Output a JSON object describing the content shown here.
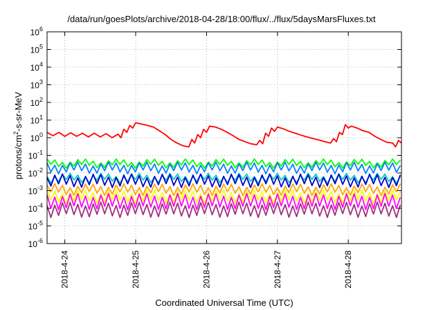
{
  "chart_data": {
    "type": "line",
    "title": "/data/run/goesPlots/archive/2018-04-28/18:00/flux/../flux/5daysMarsFluxes.txt",
    "xlabel": "Coordinated Universal Time (UTC)",
    "ylabel_prefix": "protons/cm",
    "ylabel_sup": "2",
    "ylabel_suffix": "-s-sr-MeV",
    "y_scale": "log",
    "ylim": [
      1e-06,
      1000000.0
    ],
    "y_ticks": [
      {
        "exp": -6,
        "label": "10",
        "sup": "-6"
      },
      {
        "exp": -5,
        "label": "10",
        "sup": "-5"
      },
      {
        "exp": -4,
        "label": "10",
        "sup": "-4"
      },
      {
        "exp": -3,
        "label": "10",
        "sup": "-3"
      },
      {
        "exp": -2,
        "label": "10",
        "sup": "-2"
      },
      {
        "exp": -1,
        "label": "10",
        "sup": "-1"
      },
      {
        "exp": 0,
        "label": "10",
        "sup": "0"
      },
      {
        "exp": 1,
        "label": "10",
        "sup": "1"
      },
      {
        "exp": 2,
        "label": "10",
        "sup": "2"
      },
      {
        "exp": 3,
        "label": "10",
        "sup": "3"
      },
      {
        "exp": 4,
        "label": "10",
        "sup": "4"
      },
      {
        "exp": 5,
        "label": "10",
        "sup": "5"
      },
      {
        "exp": 6,
        "label": "10",
        "sup": "6"
      }
    ],
    "x_unit": "days",
    "xlim": [
      "2018-04-23T18:00",
      "2018-04-28T18:00"
    ],
    "x_ticks": [
      {
        "t": "2018-04-24T00:00",
        "label": "2018-4-24"
      },
      {
        "t": "2018-04-25T00:00",
        "label": "2018-4-25"
      },
      {
        "t": "2018-04-26T00:00",
        "label": "2018-4-26"
      },
      {
        "t": "2018-04-27T00:00",
        "label": "2018-4-27"
      },
      {
        "t": "2018-04-28T00:00",
        "label": "2018-4-28"
      }
    ],
    "grid": true,
    "legend": "none",
    "series": [
      {
        "color": "#ff0000",
        "pattern": "sparse",
        "points": [
          [
            "2018-04-23T18:00",
            2.0
          ],
          [
            "2018-04-23T20:00",
            1.3
          ],
          [
            "2018-04-23T22:00",
            2.0
          ],
          [
            "2018-04-24T00:00",
            1.2
          ],
          [
            "2018-04-24T02:00",
            1.9
          ],
          [
            "2018-04-24T04:00",
            1.2
          ],
          [
            "2018-04-24T06:00",
            1.8
          ],
          [
            "2018-04-24T08:00",
            1.1
          ],
          [
            "2018-04-24T10:00",
            1.8
          ],
          [
            "2018-04-24T12:00",
            1.1
          ],
          [
            "2018-04-24T14:00",
            1.7
          ],
          [
            "2018-04-24T16:00",
            1.0
          ],
          [
            "2018-04-24T18:00",
            1.6
          ],
          [
            "2018-04-24T19:00",
            1.0
          ],
          [
            "2018-04-24T20:00",
            3.0
          ],
          [
            "2018-04-24T21:00",
            2.0
          ],
          [
            "2018-04-24T22:00",
            5.0
          ],
          [
            "2018-04-24T23:00",
            3.5
          ],
          [
            "2018-04-25T00:00",
            7.0
          ],
          [
            "2018-04-25T02:00",
            6.0
          ],
          [
            "2018-04-25T04:00",
            5.0
          ],
          [
            "2018-04-25T06:00",
            4.0
          ],
          [
            "2018-04-25T08:00",
            2.5
          ],
          [
            "2018-04-25T10:00",
            1.5
          ],
          [
            "2018-04-25T12:00",
            0.8
          ],
          [
            "2018-04-25T14:00",
            0.5
          ],
          [
            "2018-04-25T16:00",
            0.35
          ],
          [
            "2018-04-25T18:00",
            0.3
          ],
          [
            "2018-04-25T19:00",
            0.8
          ],
          [
            "2018-04-25T20:00",
            0.5
          ],
          [
            "2018-04-25T21:00",
            1.5
          ],
          [
            "2018-04-25T22:00",
            1.0
          ],
          [
            "2018-04-25T23:00",
            3.0
          ],
          [
            "2018-04-26T00:00",
            2.0
          ],
          [
            "2018-04-26T01:00",
            4.5
          ],
          [
            "2018-04-26T03:00",
            4.0
          ],
          [
            "2018-04-26T05:00",
            3.0
          ],
          [
            "2018-04-26T07:00",
            2.0
          ],
          [
            "2018-04-26T09:00",
            1.3
          ],
          [
            "2018-04-26T11:00",
            0.8
          ],
          [
            "2018-04-26T13:00",
            0.6
          ],
          [
            "2018-04-26T15:00",
            0.45
          ],
          [
            "2018-04-26T17:00",
            0.4
          ],
          [
            "2018-04-26T18:00",
            0.7
          ],
          [
            "2018-04-26T19:00",
            0.45
          ],
          [
            "2018-04-26T20:00",
            1.8
          ],
          [
            "2018-04-26T21:00",
            1.2
          ],
          [
            "2018-04-26T22:00",
            3.5
          ],
          [
            "2018-04-26T23:00",
            2.3
          ],
          [
            "2018-04-27T00:00",
            4.0
          ],
          [
            "2018-04-27T02:00",
            3.2
          ],
          [
            "2018-04-27T04:00",
            2.3
          ],
          [
            "2018-04-27T06:00",
            1.8
          ],
          [
            "2018-04-27T08:00",
            1.4
          ],
          [
            "2018-04-27T10:00",
            1.1
          ],
          [
            "2018-04-27T12:00",
            0.9
          ],
          [
            "2018-04-27T14:00",
            0.75
          ],
          [
            "2018-04-27T16:00",
            0.6
          ],
          [
            "2018-04-27T18:00",
            0.5
          ],
          [
            "2018-04-27T19:00",
            0.9
          ],
          [
            "2018-04-27T20:00",
            0.6
          ],
          [
            "2018-04-27T21:00",
            2.0
          ],
          [
            "2018-04-27T22:00",
            1.5
          ],
          [
            "2018-04-27T23:00",
            5.5
          ],
          [
            "2018-04-28T00:00",
            3.5
          ],
          [
            "2018-04-28T01:00",
            4.5
          ],
          [
            "2018-04-28T03:00",
            3.5
          ],
          [
            "2018-04-28T05:00",
            2.5
          ],
          [
            "2018-04-28T07:00",
            2.0
          ],
          [
            "2018-04-28T09:00",
            1.2
          ],
          [
            "2018-04-28T11:00",
            0.8
          ],
          [
            "2018-04-28T13:00",
            0.55
          ],
          [
            "2018-04-28T15:00",
            0.5
          ],
          [
            "2018-04-28T16:00",
            0.3
          ],
          [
            "2018-04-28T17:00",
            0.7
          ],
          [
            "2018-04-28T18:00",
            0.5
          ]
        ]
      },
      {
        "color": "#00ff00",
        "pattern": "sawtooth",
        "base": 0.025,
        "ratio": 2.0,
        "period_hours": 2.6
      },
      {
        "color": "#0080ff",
        "pattern": "sawtooth",
        "base": 0.012,
        "ratio": 2.8,
        "period_hours": 2.6
      },
      {
        "color": "#00c8c8",
        "pattern": "sawtooth",
        "base": 0.0035,
        "ratio": 2.2,
        "period_hours": 2.6
      },
      {
        "color": "#0000c8",
        "pattern": "sawtooth",
        "base": 0.002,
        "ratio": 3.5,
        "period_hours": 2.6
      },
      {
        "color": "#ffa500",
        "pattern": "sawtooth",
        "base": 0.0007,
        "ratio": 2.8,
        "period_hours": 2.6
      },
      {
        "color": "#ffff00",
        "pattern": "sawtooth",
        "base": 0.00025,
        "ratio": 3.5,
        "period_hours": 2.6
      },
      {
        "color": "#ff00ff",
        "pattern": "sawtooth",
        "base": 0.00011,
        "ratio": 5.0,
        "period_hours": 2.6
      },
      {
        "color": "#a0307a",
        "pattern": "sawtooth",
        "base": 4e-05,
        "ratio": 4.5,
        "period_hours": 2.6
      }
    ]
  }
}
